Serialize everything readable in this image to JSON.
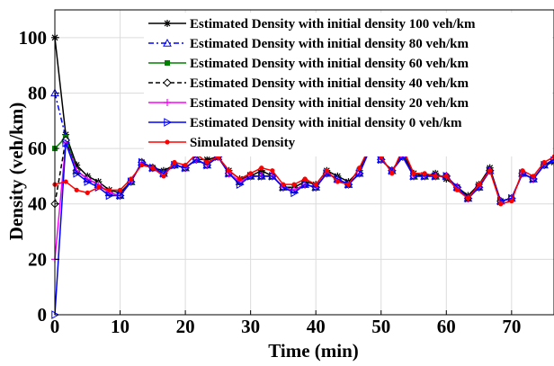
{
  "chart_data": {
    "type": "line",
    "xlabel": "Time (min)",
    "ylabel": "Density  (veh/km)",
    "xlim": [
      0,
      76.5
    ],
    "ylim": [
      0,
      110
    ],
    "xticks": [
      0,
      10,
      20,
      30,
      40,
      50,
      60,
      70
    ],
    "yticks": [
      0,
      20,
      40,
      60,
      80,
      100
    ],
    "grid": true,
    "legend_position": "top-right",
    "x": [
      0,
      1.67,
      3.33,
      5,
      6.67,
      8.33,
      10,
      11.67,
      13.33,
      15,
      16.67,
      18.33,
      20,
      21.67,
      23.33,
      25,
      26.67,
      28.33,
      30,
      31.67,
      33.33,
      35,
      36.67,
      38.33,
      40,
      41.67,
      43.33,
      45,
      46.67,
      48.33,
      50,
      51.67,
      53.33,
      55,
      56.67,
      58.33,
      60,
      61.67,
      63.33,
      65,
      66.67,
      68.33,
      70,
      71.67,
      73.33,
      75,
      76.5
    ],
    "series": [
      {
        "name": "Estimated Density with initial density 100 veh/km",
        "color": "#000000",
        "dash": "",
        "marker": "star",
        "values": [
          100,
          65,
          54,
          50,
          48,
          45,
          44,
          48,
          55,
          53,
          52,
          54,
          53,
          56,
          56,
          57,
          52,
          49,
          50,
          52,
          50,
          46,
          46,
          48,
          47,
          52,
          50,
          48,
          52,
          60,
          56,
          52,
          58,
          51,
          50,
          51,
          49,
          46,
          43,
          47,
          53,
          41,
          42,
          51,
          49,
          54,
          55
        ]
      },
      {
        "name": "Estimated Density with initial density 80 veh/km",
        "color": "#0000ff",
        "dash": "6,3,2,3",
        "marker": "triangle",
        "values": [
          80,
          64,
          52,
          49,
          47,
          44,
          43,
          48,
          55,
          53,
          51,
          54,
          53,
          56,
          54,
          57,
          51,
          48,
          50,
          50,
          50,
          46,
          45,
          47,
          46,
          51,
          49,
          47,
          51,
          60,
          56,
          52,
          57,
          50,
          50,
          50,
          50,
          46,
          42,
          46,
          52,
          41,
          42,
          51,
          49,
          54,
          56
        ]
      },
      {
        "name": "Estimated Density with initial density 60 veh/km",
        "color": "#008000",
        "dash": "",
        "marker": "square",
        "values": [
          60,
          64,
          52,
          49,
          47,
          44,
          43,
          48,
          55,
          53,
          51,
          54,
          53,
          56,
          54,
          57,
          51,
          48,
          50,
          50,
          50,
          46,
          45,
          47,
          46,
          51,
          49,
          47,
          51,
          60,
          56,
          52,
          57,
          50,
          50,
          50,
          50,
          46,
          42,
          46,
          52,
          41,
          42,
          51,
          49,
          54,
          56
        ]
      },
      {
        "name": "Estimated Density with initial density 40 veh/km",
        "color": "#000000",
        "dash": "5,3",
        "marker": "diamond",
        "values": [
          40,
          63,
          52,
          49,
          47,
          44,
          43,
          48,
          55,
          53,
          51,
          54,
          53,
          56,
          54,
          57,
          51,
          48,
          50,
          50,
          50,
          46,
          45,
          47,
          46,
          51,
          49,
          47,
          51,
          60,
          56,
          52,
          57,
          50,
          50,
          50,
          50,
          46,
          42,
          46,
          52,
          41,
          42,
          51,
          49,
          54,
          56
        ]
      },
      {
        "name": "Estimated Density with initial density 20 veh/km",
        "color": "#ff00ff",
        "dash": "",
        "marker": "plus",
        "values": [
          20,
          62,
          52,
          49,
          47,
          44,
          43,
          48,
          55,
          53,
          51,
          54,
          53,
          56,
          54,
          57,
          51,
          48,
          50,
          50,
          50,
          46,
          45,
          47,
          46,
          51,
          49,
          47,
          51,
          60,
          56,
          52,
          57,
          50,
          50,
          50,
          50,
          46,
          42,
          46,
          52,
          41,
          42,
          51,
          49,
          54,
          56
        ]
      },
      {
        "name": "Estimated Density with initial density 0 veh/km",
        "color": "#0000ff",
        "dash": "",
        "marker": "triangle-right",
        "values": [
          0,
          62,
          51,
          48,
          46,
          43,
          43,
          48,
          55,
          53,
          51,
          54,
          53,
          56,
          54,
          57,
          51,
          47,
          50,
          50,
          50,
          46,
          44,
          47,
          46,
          51,
          49,
          47,
          51,
          60,
          56,
          52,
          57,
          50,
          50,
          50,
          50,
          46,
          42,
          46,
          52,
          41,
          42,
          51,
          49,
          54,
          56
        ]
      },
      {
        "name": "Simulated Density",
        "color": "#ff0000",
        "dash": "",
        "marker": "dot",
        "values": [
          47,
          48,
          45,
          44,
          46,
          45,
          45,
          49,
          54,
          53,
          50,
          55,
          54,
          58,
          55,
          57,
          52,
          49,
          51,
          53,
          52,
          47,
          47,
          49,
          47,
          52,
          48,
          47,
          53,
          61,
          57,
          51,
          60,
          51,
          51,
          50,
          50,
          45,
          42,
          47,
          52,
          40,
          41,
          52,
          50,
          55,
          57
        ]
      }
    ]
  }
}
